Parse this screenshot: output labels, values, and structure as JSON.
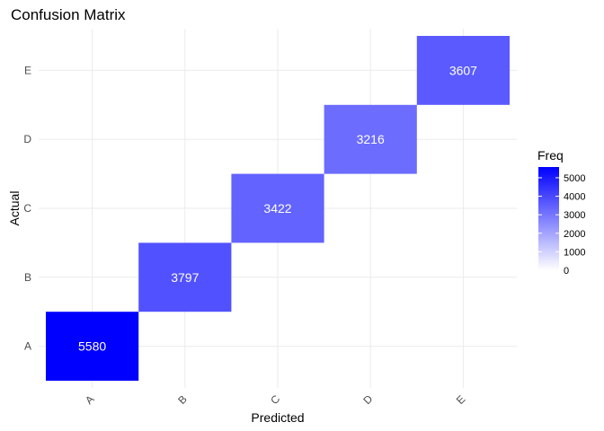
{
  "chart_data": {
    "type": "heatmap",
    "title": "Confusion Matrix",
    "xlabel": "Predicted",
    "ylabel": "Actual",
    "x_categories": [
      "A",
      "B",
      "C",
      "D",
      "E"
    ],
    "y_categories": [
      "A",
      "B",
      "C",
      "D",
      "E"
    ],
    "cells": [
      {
        "predicted": "A",
        "actual": "A",
        "freq": 5580
      },
      {
        "predicted": "B",
        "actual": "B",
        "freq": 3797
      },
      {
        "predicted": "C",
        "actual": "C",
        "freq": 3422
      },
      {
        "predicted": "D",
        "actual": "D",
        "freq": 3216
      },
      {
        "predicted": "E",
        "actual": "E",
        "freq": 3607
      }
    ],
    "legend": {
      "title": "Freq",
      "ticks": [
        0,
        1000,
        2000,
        3000,
        4000,
        5000
      ],
      "range": [
        0,
        5580
      ],
      "low_color": "#ffffff",
      "high_color": "#0000ff"
    },
    "grid": true
  }
}
